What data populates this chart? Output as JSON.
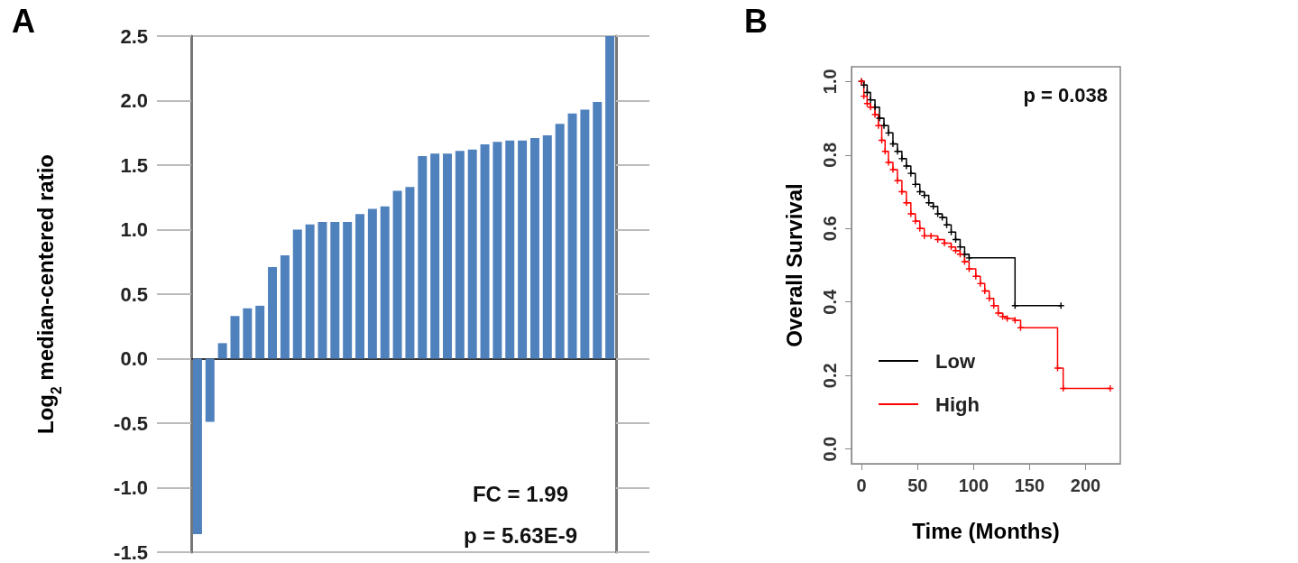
{
  "chart_data": [
    {
      "type": "bar",
      "title": "A",
      "ylabel": "Log$_{2}$ median-centered ratio",
      "categories": [
        null,
        null,
        null,
        null,
        null,
        null,
        null,
        null,
        null,
        null,
        null,
        null,
        null,
        null,
        null,
        null,
        null,
        null,
        null,
        null,
        null,
        null,
        null,
        null,
        null,
        null,
        null,
        null,
        null,
        null,
        null,
        null,
        null,
        null
      ],
      "values": [
        -1.36,
        -0.49,
        0.12,
        0.33,
        0.39,
        0.41,
        0.71,
        0.8,
        1.0,
        1.04,
        1.06,
        1.06,
        1.06,
        1.12,
        1.16,
        1.18,
        1.3,
        1.33,
        1.57,
        1.59,
        1.59,
        1.61,
        1.62,
        1.66,
        1.68,
        1.69,
        1.69,
        1.71,
        1.73,
        1.82,
        1.9,
        1.93,
        1.99,
        2.5
      ],
      "color": "#4f81bd",
      "ylim": [
        -1.5,
        2.5
      ],
      "yticks": [
        {
          "value": -1.5,
          "label": "-1.5"
        },
        {
          "value": -1,
          "label": "-1.0"
        },
        {
          "value": -0.5,
          "label": "-0.5"
        },
        {
          "value": 0,
          "label": "0.0"
        },
        {
          "value": 0.5,
          "label": "0.5"
        },
        {
          "value": 1,
          "label": "1.0"
        },
        {
          "value": 1.5,
          "label": "1.5"
        },
        {
          "value": 2,
          "label": "2.0"
        },
        {
          "value": 2.5,
          "label": "2.5"
        }
      ],
      "grid": "y",
      "annotations": [
        "FC = 1.99",
        "p = 5.63E-9"
      ]
    },
    {
      "type": "step",
      "title": "B",
      "xlabel": "Time (Months)",
      "ylabel": "Overall Survival",
      "series": [
        {
          "name": "Low",
          "color": "#000000",
          "x": [
            0,
            2,
            5,
            8,
            12,
            16,
            20,
            24,
            28,
            32,
            36,
            40,
            44,
            48,
            52,
            56,
            60,
            64,
            68,
            72,
            76,
            80,
            84,
            88,
            92,
            96,
            137,
            178
          ],
          "values": [
            1.0,
            0.99,
            0.97,
            0.95,
            0.93,
            0.9,
            0.88,
            0.86,
            0.83,
            0.81,
            0.79,
            0.77,
            0.75,
            0.72,
            0.7,
            0.69,
            0.67,
            0.66,
            0.64,
            0.63,
            0.61,
            0.59,
            0.57,
            0.55,
            0.53,
            0.52,
            0.39,
            0.39
          ]
        },
        {
          "name": "High",
          "color": "#ff0000",
          "x": [
            0,
            2,
            5,
            8,
            12,
            15,
            18,
            21,
            24,
            28,
            32,
            36,
            40,
            44,
            48,
            52,
            56,
            62,
            68,
            74,
            80,
            84,
            88,
            92,
            96,
            102,
            106,
            110,
            114,
            118,
            122,
            126,
            130,
            137,
            142,
            175,
            180,
            222
          ],
          "values": [
            1.0,
            0.96,
            0.94,
            0.93,
            0.91,
            0.88,
            0.84,
            0.81,
            0.78,
            0.76,
            0.73,
            0.7,
            0.67,
            0.64,
            0.62,
            0.6,
            0.58,
            0.58,
            0.57,
            0.56,
            0.55,
            0.54,
            0.53,
            0.51,
            0.49,
            0.47,
            0.45,
            0.43,
            0.41,
            0.39,
            0.37,
            0.36,
            0.355,
            0.35,
            0.33,
            0.22,
            0.165,
            0.165
          ]
        }
      ],
      "xlim": [
        -9,
        231
      ],
      "ylim": [
        -0.04,
        1.04
      ],
      "xticks": [
        0,
        50,
        100,
        150,
        200
      ],
      "yticks": [
        {
          "value": 0,
          "label": "0.0"
        },
        {
          "value": 0.2,
          "label": "0.2"
        },
        {
          "value": 0.4,
          "label": "0.4"
        },
        {
          "value": 0.6,
          "label": "0.6"
        },
        {
          "value": 0.8,
          "label": "0.8"
        },
        {
          "value": 1,
          "label": "1.0"
        }
      ],
      "grid": false,
      "legend": "bottom left",
      "marker": "cross",
      "line_style": "solid",
      "annotations": [
        "p = 0.038"
      ]
    }
  ]
}
